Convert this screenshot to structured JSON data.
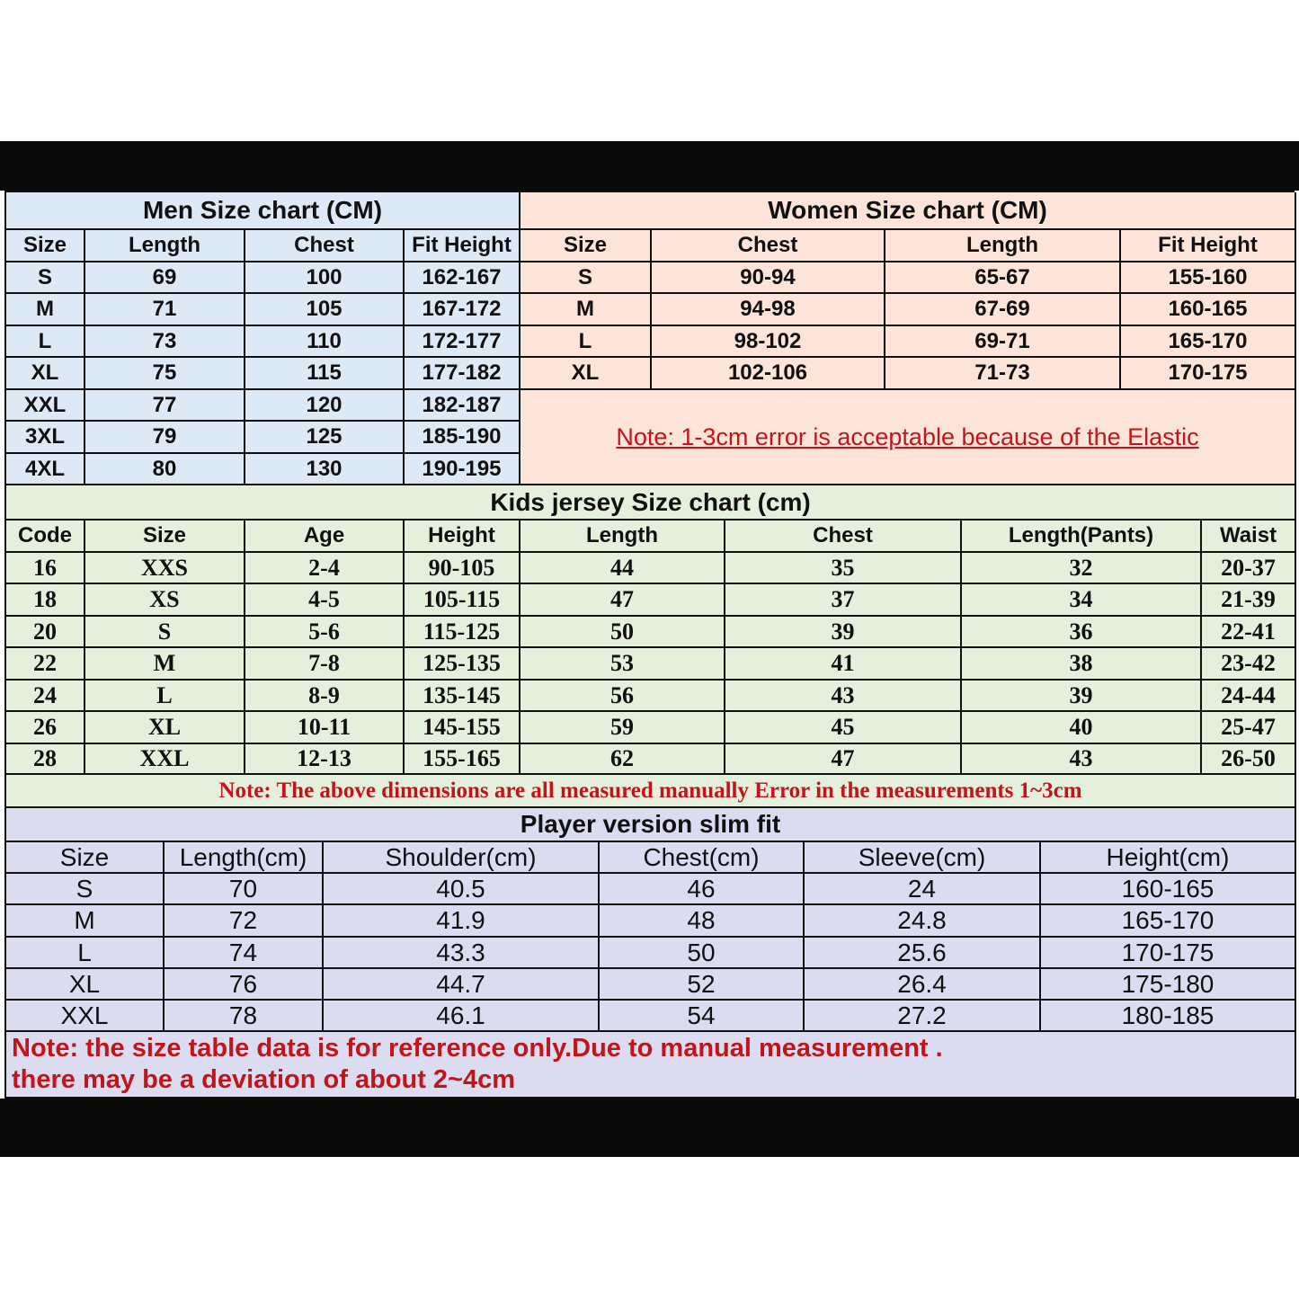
{
  "colors": {
    "men_bg": "#dde9f5",
    "women_bg": "#fce4d8",
    "kids_bg": "#e4f0dc",
    "player_bg": "#dcdcf0",
    "note_red": "#c0161b",
    "border": "#111111",
    "frame": "#0a0a0a"
  },
  "men": {
    "title": "Men Size chart (CM)",
    "headers": [
      "Size",
      "Length",
      "Chest",
      "Fit Height"
    ],
    "rows": [
      [
        "S",
        "69",
        "100",
        "162-167"
      ],
      [
        "M",
        "71",
        "105",
        "167-172"
      ],
      [
        "L",
        "73",
        "110",
        "172-177"
      ],
      [
        "XL",
        "75",
        "115",
        "177-182"
      ],
      [
        "XXL",
        "77",
        "120",
        "182-187"
      ],
      [
        "3XL",
        "79",
        "125",
        "185-190"
      ],
      [
        "4XL",
        "80",
        "130",
        "190-195"
      ]
    ]
  },
  "women": {
    "title": "Women Size chart (CM)",
    "headers": [
      "Size",
      "Chest",
      "Length",
      "Fit Height"
    ],
    "rows": [
      [
        "S",
        "90-94",
        "65-67",
        "155-160"
      ],
      [
        "M",
        "94-98",
        "67-69",
        "160-165"
      ],
      [
        "L",
        "98-102",
        "69-71",
        "165-170"
      ],
      [
        "XL",
        "102-106",
        "71-73",
        "170-175"
      ]
    ],
    "note": "Note: 1-3cm error is acceptable because of the Elastic"
  },
  "kids": {
    "title": "Kids jersey Size chart (cm)",
    "headers": [
      "Code",
      "Size",
      "Age",
      "Height",
      "Length",
      "Chest",
      "Length(Pants)",
      "Waist"
    ],
    "rows": [
      [
        "16",
        "XXS",
        "2-4",
        "90-105",
        "44",
        "35",
        "32",
        "20-37"
      ],
      [
        "18",
        "XS",
        "4-5",
        "105-115",
        "47",
        "37",
        "34",
        "21-39"
      ],
      [
        "20",
        "S",
        "5-6",
        "115-125",
        "50",
        "39",
        "36",
        "22-41"
      ],
      [
        "22",
        "M",
        "7-8",
        "125-135",
        "53",
        "41",
        "38",
        "23-42"
      ],
      [
        "24",
        "L",
        "8-9",
        "135-145",
        "56",
        "43",
        "39",
        "24-44"
      ],
      [
        "26",
        "XL",
        "10-11",
        "145-155",
        "59",
        "45",
        "40",
        "25-47"
      ],
      [
        "28",
        "XXL",
        "12-13",
        "155-165",
        "62",
        "47",
        "43",
        "26-50"
      ]
    ],
    "note": "Note: The above dimensions are all measured manually Error in the measurements 1~3cm"
  },
  "player": {
    "title": "Player version slim fit",
    "headers": [
      "Size",
      "Length(cm)",
      "Shoulder(cm)",
      "Chest(cm)",
      "Sleeve(cm)",
      "Height(cm)"
    ],
    "rows": [
      [
        "S",
        "70",
        "40.5",
        "46",
        "24",
        "160-165"
      ],
      [
        "M",
        "72",
        "41.9",
        "48",
        "24.8",
        "165-170"
      ],
      [
        "L",
        "74",
        "43.3",
        "50",
        "25.6",
        "170-175"
      ],
      [
        "XL",
        "76",
        "44.7",
        "52",
        "26.4",
        "175-180"
      ],
      [
        "XXL",
        "78",
        "46.1",
        "54",
        "27.2",
        "180-185"
      ]
    ],
    "note_line1": "Note:  the size table data is for reference only.Due to manual measurement .",
    "note_line2": "there may be a deviation of about 2~4cm"
  }
}
